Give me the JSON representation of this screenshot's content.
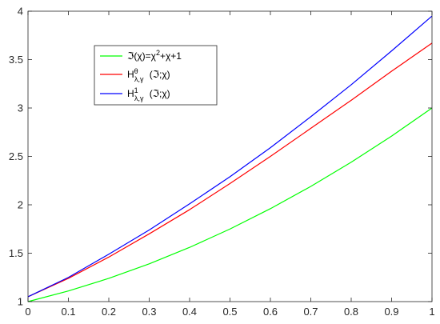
{
  "chart_data": {
    "type": "line",
    "title": "",
    "xlabel": "",
    "ylabel": "",
    "xlim": [
      0,
      1
    ],
    "ylim": [
      1,
      4
    ],
    "grid": false,
    "legend_position": "top-center",
    "x_ticks": [
      "0",
      "0.1",
      "0.2",
      "0.3",
      "0.4",
      "0.5",
      "0.6",
      "0.7",
      "0.8",
      "0.9",
      "1"
    ],
    "y_ticks": [
      "1",
      "1.5",
      "2",
      "2.5",
      "3",
      "3.5",
      "4"
    ],
    "x": [
      0,
      0.1,
      0.2,
      0.3,
      0.4,
      0.5,
      0.6,
      0.7,
      0.8,
      0.9,
      1.0
    ],
    "series": [
      {
        "color": "#00ff00",
        "legend": {
          "main": "ℑ(χ)=χ",
          "sup": "2",
          "tail": "+χ+1"
        },
        "values": [
          1.0,
          1.11,
          1.24,
          1.39,
          1.56,
          1.75,
          1.96,
          2.19,
          2.44,
          2.71,
          3.0
        ]
      },
      {
        "color": "#ff0000",
        "legend": {
          "main": "H",
          "sup": "θ",
          "sub": "λ,γ",
          "tail": "(ℑ;χ)"
        },
        "values": [
          1.05,
          1.24,
          1.46,
          1.7,
          1.95,
          2.22,
          2.5,
          2.79,
          3.08,
          3.38,
          3.67
        ]
      },
      {
        "color": "#0000ff",
        "legend": {
          "main": "H",
          "sup": "1",
          "sub": "λ,γ",
          "tail": "(ℑ;χ)"
        },
        "values": [
          1.05,
          1.25,
          1.49,
          1.74,
          2.01,
          2.29,
          2.59,
          2.91,
          3.24,
          3.59,
          3.95
        ]
      }
    ]
  }
}
